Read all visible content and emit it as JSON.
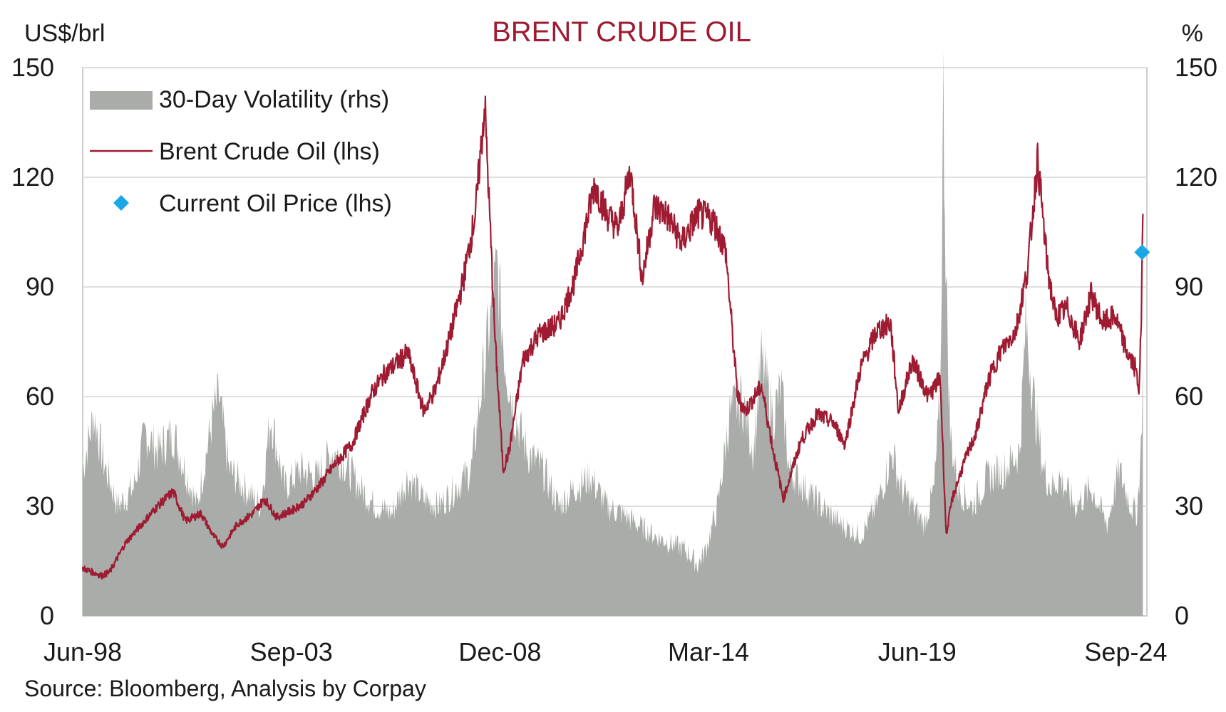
{
  "chart_data": {
    "type": "line",
    "title": "BRENT CRUDE OIL",
    "ylabel_left": "US$/brl",
    "ylabel_right": "%",
    "source": "Source: Bloomberg, Analysis by Corpay",
    "ylim_left": [
      0,
      150
    ],
    "ylim_right": [
      0,
      150
    ],
    "yticks_left": [
      "0",
      "30",
      "60",
      "90",
      "120",
      "150"
    ],
    "yticks_right": [
      "0",
      "30",
      "60",
      "90",
      "120",
      "150"
    ],
    "xlim": [
      1998.42,
      2025.2
    ],
    "xticks": [
      {
        "label": "Jun-98",
        "x": 1998.42
      },
      {
        "label": "Sep-03",
        "x": 2003.67
      },
      {
        "label": "Dec-08",
        "x": 2008.92
      },
      {
        "label": "Mar-14",
        "x": 2014.17
      },
      {
        "label": "Jun-19",
        "x": 2019.42
      },
      {
        "label": "Sep-24",
        "x": 2024.67
      }
    ],
    "grid": true,
    "legend_position": "top-left",
    "colors": {
      "title": "#9e1b32",
      "brent": "#9e1b32",
      "volatility": "#a9aca8",
      "current": "#1aa7e6",
      "grid": "#dedede",
      "axis": "#c8c8c8"
    },
    "legend": [
      {
        "key": "volatility",
        "label": "30-Day Volatility (rhs)"
      },
      {
        "key": "brent",
        "label": "Brent Crude Oil (lhs)"
      },
      {
        "key": "current",
        "label": "Current Oil Price (lhs)"
      }
    ],
    "series": [
      {
        "name": "Brent Crude Oil (lhs)",
        "axis": "left",
        "type": "line",
        "x": [
          1998.42,
          1998.9,
          1999.1,
          1999.5,
          1999.9,
          2000.3,
          2000.7,
          2001.0,
          2001.4,
          2001.7,
          2001.95,
          2002.3,
          2002.7,
          2003.0,
          2003.3,
          2003.7,
          2004.0,
          2004.4,
          2004.8,
          2005.2,
          2005.7,
          2006.0,
          2006.6,
          2007.0,
          2007.3,
          2007.7,
          2008.0,
          2008.3,
          2008.54,
          2008.8,
          2009.0,
          2009.15,
          2009.5,
          2009.9,
          2010.4,
          2010.8,
          2011.3,
          2011.6,
          2011.9,
          2012.2,
          2012.5,
          2012.8,
          2013.1,
          2013.5,
          2013.9,
          2014.3,
          2014.6,
          2014.9,
          2015.1,
          2015.5,
          2015.8,
          2016.05,
          2016.5,
          2016.9,
          2017.3,
          2017.6,
          2018.0,
          2018.4,
          2018.75,
          2018.95,
          2019.3,
          2019.7,
          2020.0,
          2020.15,
          2020.3,
          2020.6,
          2020.9,
          2021.2,
          2021.5,
          2021.9,
          2022.2,
          2022.45,
          2022.7,
          2022.9,
          2023.2,
          2023.5,
          2023.8,
          2024.1,
          2024.4,
          2024.7,
          2024.9,
          2025.0,
          2025.06,
          2025.1
        ],
        "values": [
          13,
          11,
          12,
          20,
          25,
          30,
          34,
          26,
          28,
          22,
          19,
          25,
          28,
          32,
          27,
          29,
          31,
          36,
          42,
          47,
          61,
          66,
          72,
          56,
          62,
          78,
          92,
          110,
          140,
          75,
          40,
          45,
          70,
          77,
          80,
          92,
          118,
          110,
          106,
          122,
          92,
          112,
          110,
          102,
          110,
          108,
          100,
          60,
          56,
          63,
          45,
          32,
          48,
          55,
          53,
          47,
          68,
          78,
          80,
          56,
          70,
          60,
          65,
          22,
          32,
          42,
          50,
          64,
          72,
          78,
          95,
          125,
          95,
          82,
          84,
          75,
          88,
          80,
          82,
          72,
          68,
          62,
          80,
          110
        ]
      },
      {
        "name": "30-Day Volatility (rhs)",
        "axis": "right",
        "type": "area",
        "x": [
          1998.42,
          1998.7,
          1998.95,
          1999.3,
          1999.7,
          2000.0,
          2000.3,
          2000.7,
          2001.0,
          2001.3,
          2001.7,
          2001.85,
          2002.1,
          2002.5,
          2002.9,
          2003.15,
          2003.5,
          2003.9,
          2004.3,
          2004.7,
          2005.0,
          2005.4,
          2005.8,
          2006.2,
          2006.6,
          2007.0,
          2007.4,
          2007.8,
          2008.2,
          2008.6,
          2008.85,
          2009.05,
          2009.3,
          2009.6,
          2010.0,
          2010.4,
          2010.8,
          2011.2,
          2011.6,
          2012.0,
          2012.4,
          2012.8,
          2013.2,
          2013.6,
          2013.9,
          2014.1,
          2014.4,
          2014.7,
          2015.0,
          2015.3,
          2015.5,
          2015.8,
          2016.0,
          2016.2,
          2016.6,
          2017.0,
          2017.5,
          2018.0,
          2018.4,
          2018.8,
          2019.0,
          2019.3,
          2019.6,
          2019.85,
          2020.0,
          2020.08,
          2020.15,
          2020.25,
          2020.45,
          2020.8,
          2021.2,
          2021.6,
          2022.0,
          2022.15,
          2022.4,
          2022.6,
          2022.8,
          2023.0,
          2023.4,
          2023.8,
          2024.2,
          2024.5,
          2024.8,
          2024.95,
          2025.05,
          2025.1
        ],
        "values": [
          40,
          55,
          42,
          30,
          35,
          50,
          45,
          50,
          40,
          30,
          55,
          60,
          40,
          35,
          30,
          55,
          35,
          40,
          38,
          45,
          42,
          35,
          30,
          28,
          38,
          32,
          30,
          35,
          40,
          75,
          95,
          70,
          55,
          45,
          40,
          30,
          35,
          38,
          30,
          28,
          25,
          22,
          20,
          18,
          14,
          18,
          30,
          55,
          60,
          45,
          70,
          55,
          62,
          40,
          35,
          30,
          25,
          22,
          30,
          45,
          35,
          30,
          25,
          35,
          60,
          142,
          90,
          50,
          35,
          30,
          38,
          40,
          45,
          80,
          55,
          40,
          35,
          38,
          30,
          35,
          25,
          40,
          30,
          28,
          45,
          70
        ]
      }
    ],
    "current_oil_price": {
      "label": "Current Oil Price (lhs)",
      "x": 2025.08,
      "value": 99.5
    }
  }
}
